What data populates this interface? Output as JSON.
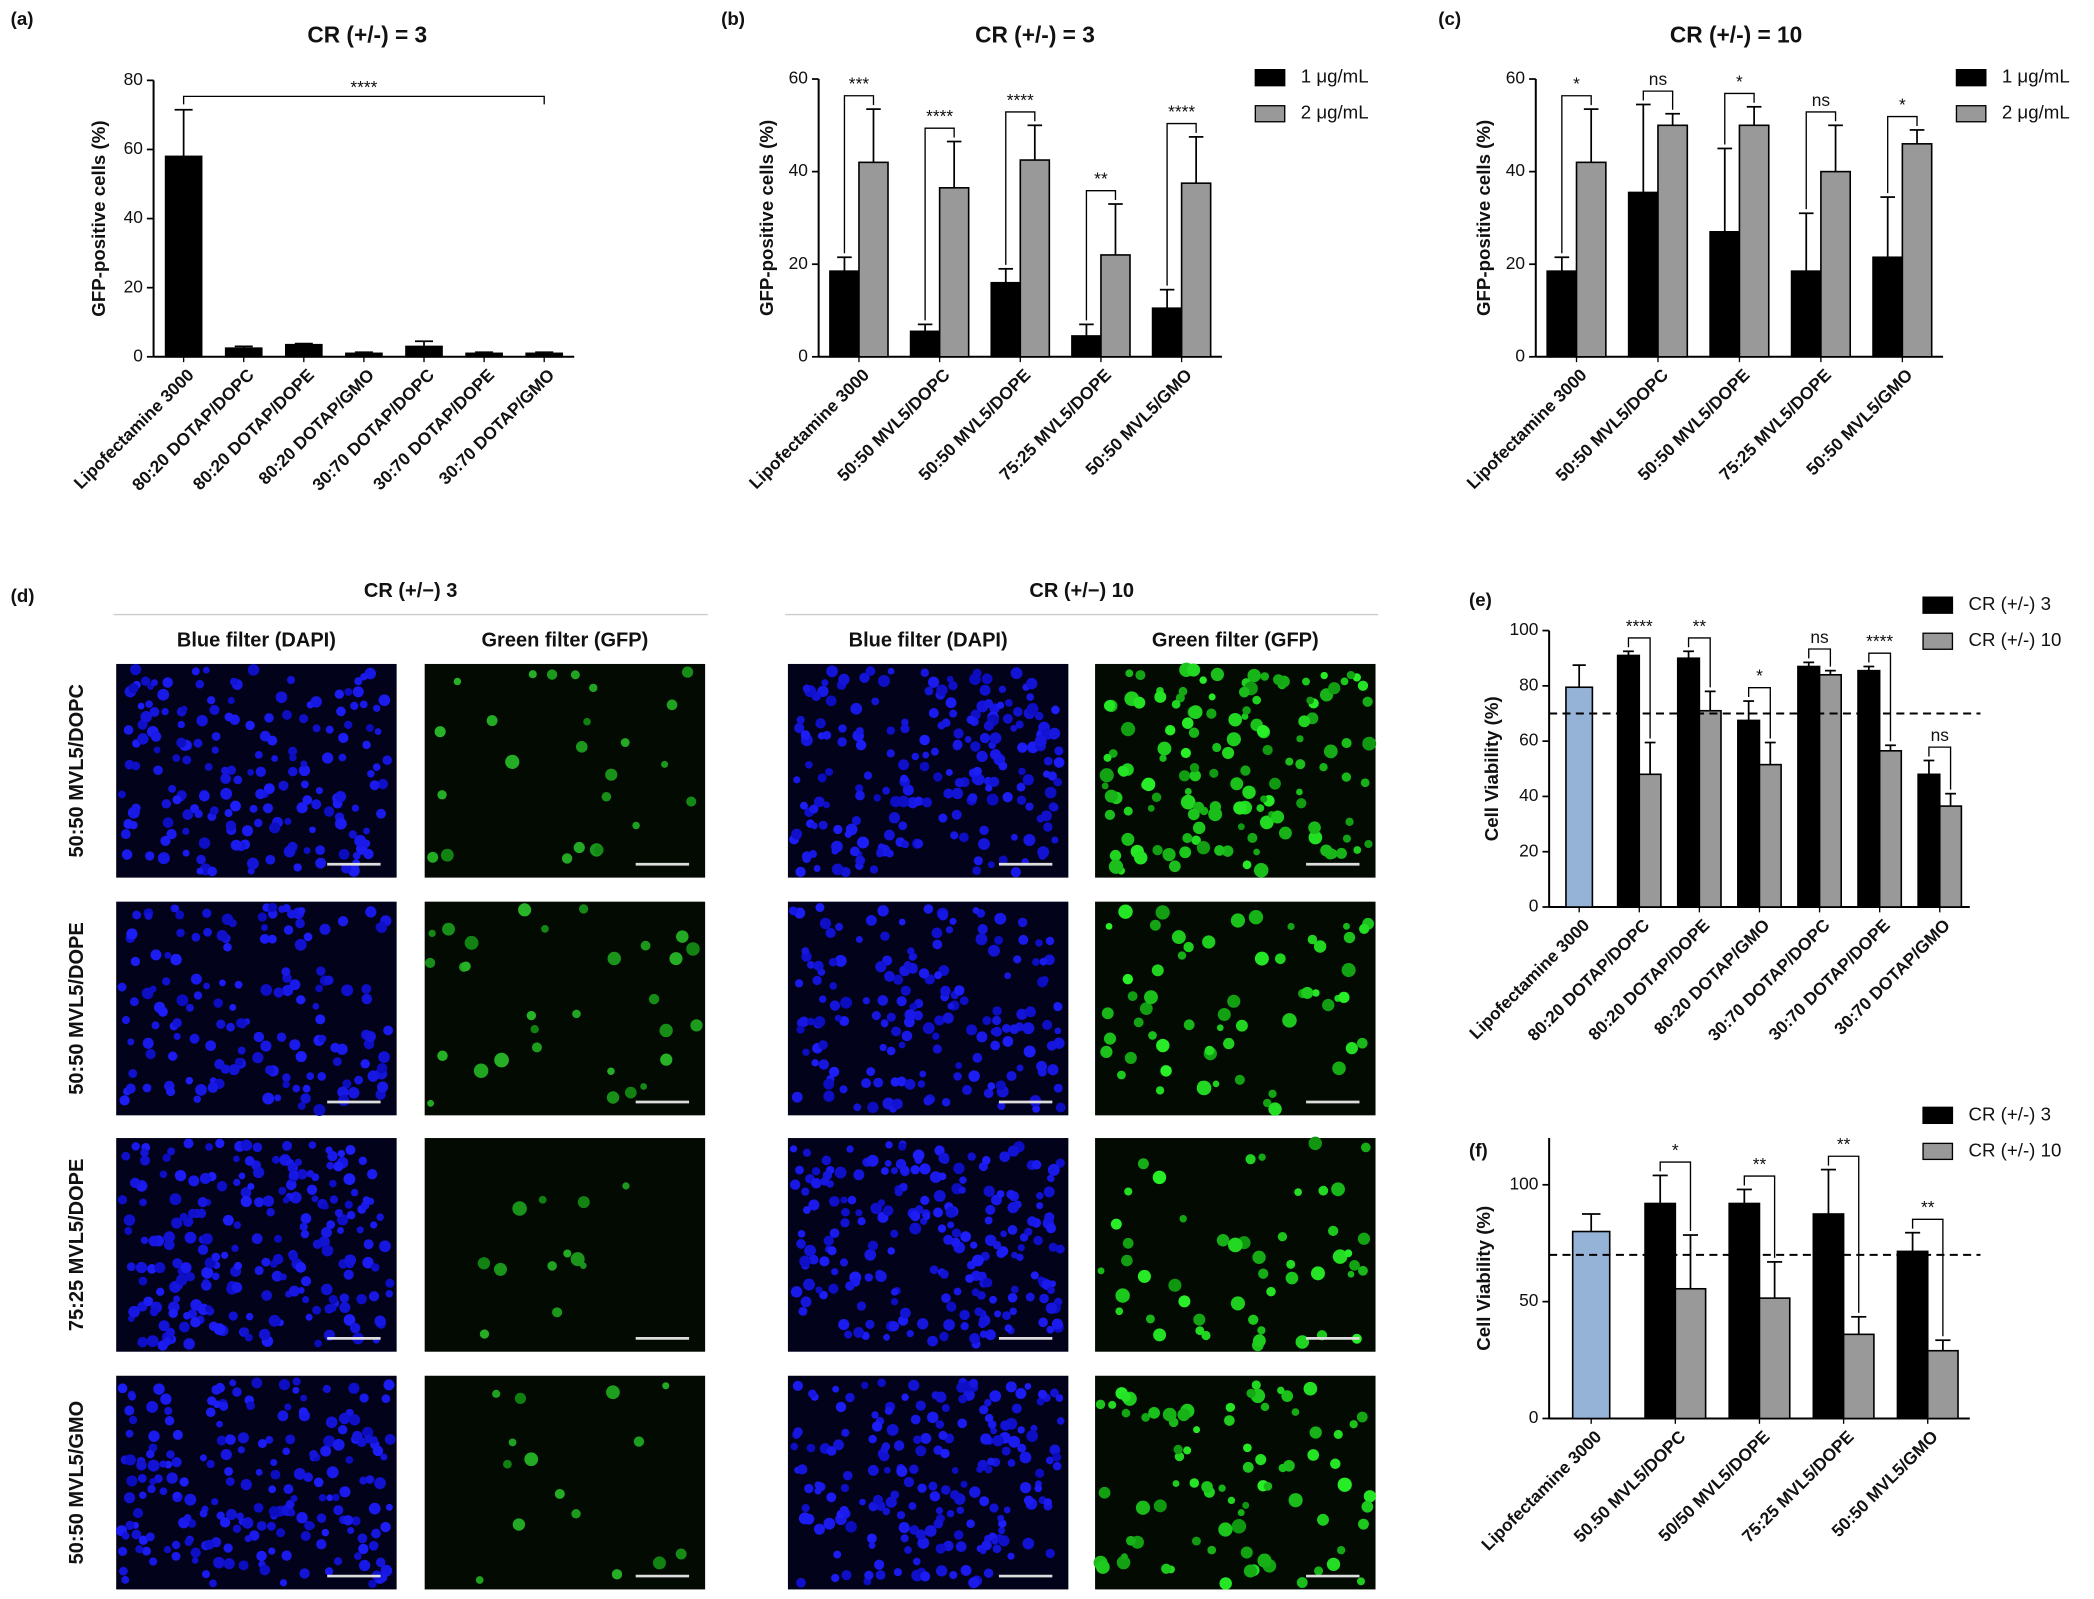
{
  "chart_data": [
    {
      "type": "bar",
      "panel_label": "(a)",
      "title": "CR (+/-) = 3",
      "y_label": "GFP-positive cells (%)",
      "categories": [
        "Lipofectamine 3000",
        "80:20 DOTAP/DOPC",
        "80:20 DOTAP/DOPE",
        "80:20 DOTAP/GMO",
        "30:70 DOTAP/DOPC",
        "30:70 DOTAP/DOPE",
        "30:70 DOTAP/GMO"
      ],
      "values": [
        58,
        2.5,
        3.5,
        1,
        3,
        1,
        1
      ],
      "errors": [
        13.5,
        0.5,
        0.3,
        0.3,
        1.5,
        0.3,
        0.3
      ],
      "color": "#000000",
      "annotation": "****",
      "ylim": [
        0,
        80
      ],
      "yticks": [
        0,
        20,
        40,
        60,
        80
      ]
    },
    {
      "type": "bar",
      "panel_label": "(b)",
      "title": "CR (+/-) = 3",
      "y_label": "GFP-positive cells (%)",
      "categories": [
        "Lipofectamine 3000",
        "50:50 MVL5/DOPC",
        "50:50 MVL5/DOPE",
        "75:25 MVL5/DOPE",
        "50:50 MVL5/GMO"
      ],
      "series": [
        {
          "name": "1 μg/mL",
          "color": "#000000",
          "values": [
            18.5,
            5.5,
            16,
            4.5,
            10.5
          ],
          "errors": [
            3,
            1.5,
            3,
            2.5,
            4
          ]
        },
        {
          "name": "2 μg/mL",
          "color": "#999999",
          "values": [
            42,
            36.5,
            42.5,
            22,
            37.5
          ],
          "errors": [
            11.5,
            10,
            7.5,
            11,
            10
          ]
        }
      ],
      "significance": [
        "***",
        "****",
        "****",
        "**",
        "****"
      ],
      "ylim": [
        0,
        60
      ],
      "yticks": [
        0,
        20,
        40,
        60
      ]
    },
    {
      "type": "bar",
      "panel_label": "(c)",
      "title": "CR (+/-) = 10",
      "y_label": "GFP-positive cells (%)",
      "categories": [
        "Lipofectamine 3000",
        "50:50 MVL5/DOPC",
        "50:50 MVL5/DOPE",
        "75:25 MVL5/DOPE",
        "50:50 MVL5/GMO"
      ],
      "series": [
        {
          "name": "1 μg/mL",
          "color": "#000000",
          "values": [
            18.5,
            35.5,
            27,
            18.5,
            21.5
          ],
          "errors": [
            3,
            19,
            18,
            12.5,
            13
          ]
        },
        {
          "name": "2 μg/mL",
          "color": "#999999",
          "values": [
            42,
            50,
            50,
            40,
            46
          ],
          "errors": [
            11.5,
            2.5,
            4,
            10,
            3
          ]
        }
      ],
      "significance": [
        "*",
        "ns",
        "*",
        "ns",
        "*"
      ],
      "ylim": [
        0,
        60
      ],
      "yticks": [
        0,
        20,
        40,
        60
      ]
    },
    {
      "type": "bar",
      "panel_label": "(e)",
      "y_label": "Cell Viability (%)",
      "categories": [
        "Lipofectamine 3000",
        "80:20 DOTAP/DOPC",
        "80:20 DOTAP/DOPE",
        "80:20 DOTAP/GMO",
        "30:70 DOTAP/DOPC",
        "30:70 DOTAP/DOPE",
        "30:70 DOTAP/GMO"
      ],
      "control": {
        "value": 79.5,
        "error": 8,
        "color": "#95b3d7"
      },
      "series": [
        {
          "name": "CR (+/-) 3",
          "color": "#000000",
          "values": [
            null,
            91,
            90,
            67.5,
            87,
            85.5,
            48
          ],
          "errors": [
            null,
            1.5,
            2.5,
            7,
            1.5,
            1.5,
            5
          ]
        },
        {
          "name": "CR (+/-) 10",
          "color": "#999999",
          "values": [
            null,
            48,
            71,
            51.5,
            84,
            56.5,
            36.5
          ],
          "errors": [
            null,
            11.5,
            7,
            8,
            1.5,
            2,
            4.5
          ]
        }
      ],
      "significance": [
        null,
        "****",
        "**",
        "*",
        "ns",
        "****",
        "ns"
      ],
      "reference_line": 70,
      "ylim": [
        0,
        100
      ],
      "yticks": [
        0,
        20,
        40,
        60,
        80,
        100
      ]
    },
    {
      "type": "bar",
      "panel_label": "(f)",
      "y_label": "Cell Viability (%)",
      "categories": [
        "Lipofectamine 3000",
        "50.50 MVL5/DOPC",
        "50/50 MVL5/DOPE",
        "75:25 MVL5/DOPE",
        "50:50 MVL5/GMO"
      ],
      "control": {
        "value": 80,
        "error": 7.5,
        "color": "#95b3d7"
      },
      "series": [
        {
          "name": "CR (+/-) 3",
          "color": "#000000",
          "values": [
            null,
            92,
            92,
            87.5,
            71.5
          ],
          "errors": [
            null,
            12,
            6,
            19,
            8
          ]
        },
        {
          "name": "CR (+/-) 10",
          "color": "#999999",
          "values": [
            null,
            55.5,
            51.5,
            36,
            29
          ],
          "errors": [
            null,
            23,
            15.5,
            7.5,
            4.5
          ]
        }
      ],
      "significance": [
        null,
        "*",
        "**",
        "**",
        "**"
      ],
      "reference_line": 70,
      "ylim": [
        0,
        120
      ],
      "yticks": [
        0,
        50,
        100
      ]
    }
  ],
  "image_panel": {
    "panel_label": "(d)",
    "groups": [
      {
        "title": "CR (+/−) 3",
        "columns": [
          "Blue filter (DAPI)",
          "Green filter (GFP)"
        ]
      },
      {
        "title": "CR (+/−) 10",
        "columns": [
          "Blue filter (DAPI)",
          "Green filter (GFP)"
        ]
      }
    ],
    "rows": [
      "50:50 MVL5/DOPC",
      "50:50 MVL5/DOPE",
      "75:25 MVL5/DOPE",
      "50:50 MVL5/GMO"
    ]
  }
}
